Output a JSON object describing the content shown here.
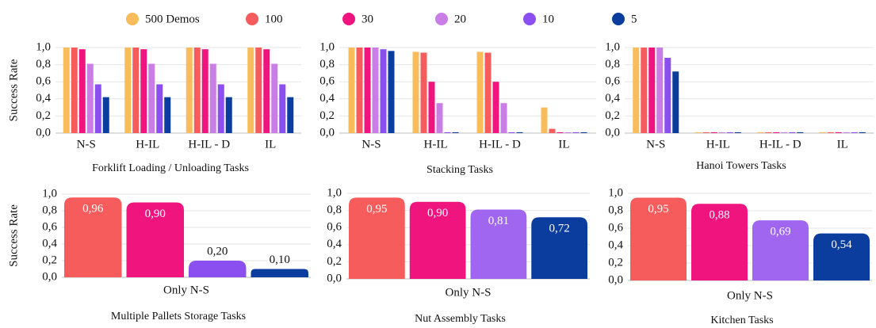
{
  "chart_data": [
    {
      "type": "bar",
      "title": "Forklift Loading / Unloading Tasks",
      "ylabel": "Success Rate",
      "categories": [
        "N-S",
        "H-IL",
        "H-IL - D",
        "IL"
      ],
      "series": [
        {
          "name": "500 Demos",
          "color": "#f9bc5b",
          "values": [
            1.0,
            1.0,
            1.0,
            1.0
          ]
        },
        {
          "name": "100",
          "color": "#f75c5c",
          "values": [
            1.0,
            1.0,
            1.0,
            1.0
          ]
        },
        {
          "name": "30",
          "color": "#f0147f",
          "values": [
            0.98,
            0.98,
            0.98,
            0.98
          ]
        },
        {
          "name": "20",
          "color": "#c97de6",
          "values": [
            0.81,
            0.81,
            0.81,
            0.81
          ]
        },
        {
          "name": "10",
          "color": "#8b4ff0",
          "values": [
            0.57,
            0.57,
            0.57,
            0.57
          ]
        },
        {
          "name": "5",
          "color": "#0b3d9e",
          "values": [
            0.42,
            0.42,
            0.42,
            0.42
          ]
        }
      ],
      "ylim": [
        0,
        1
      ],
      "yticks": [
        {
          "value": 0,
          "label": "0,0"
        },
        {
          "value": 0.2,
          "label": "0,2"
        },
        {
          "value": 0.4,
          "label": "0,4"
        },
        {
          "value": 0.6,
          "label": "0,6"
        },
        {
          "value": 0.8,
          "label": "0,8"
        },
        {
          "value": 1,
          "label": "1,0"
        }
      ],
      "grid": true
    },
    {
      "type": "bar",
      "title": "Stacking Tasks",
      "categories": [
        "N-S",
        "H-IL",
        "H-IL - D",
        "IL"
      ],
      "series": [
        {
          "name": "500 Demos",
          "color": "#f9bc5b",
          "values": [
            1.0,
            0.95,
            0.95,
            0.3
          ]
        },
        {
          "name": "100",
          "color": "#f75c5c",
          "values": [
            1.0,
            0.94,
            0.94,
            0.05
          ]
        },
        {
          "name": "30",
          "color": "#f0147f",
          "values": [
            1.0,
            0.6,
            0.6,
            0.01
          ]
        },
        {
          "name": "20",
          "color": "#c97de6",
          "values": [
            1.0,
            0.35,
            0.35,
            0.01
          ]
        },
        {
          "name": "10",
          "color": "#8b4ff0",
          "values": [
            0.98,
            0.01,
            0.01,
            0.01
          ]
        },
        {
          "name": "5",
          "color": "#0b3d9e",
          "values": [
            0.96,
            0.01,
            0.01,
            0.01
          ]
        }
      ],
      "ylim": [
        0,
        1
      ],
      "yticks": [
        {
          "value": 0,
          "label": "0,0"
        },
        {
          "value": 0.2,
          "label": "0,2"
        },
        {
          "value": 0.4,
          "label": "0,4"
        },
        {
          "value": 0.6,
          "label": "0,6"
        },
        {
          "value": 0.8,
          "label": "0,8"
        },
        {
          "value": 1,
          "label": "1,0"
        }
      ],
      "grid": true
    },
    {
      "type": "bar",
      "title": "Hanoi Towers Tasks",
      "categories": [
        "N-S",
        "H-IL",
        "H-IL - D",
        "IL"
      ],
      "series": [
        {
          "name": "500 Demos",
          "color": "#f9bc5b",
          "values": [
            1.0,
            0.01,
            0.01,
            0.01
          ]
        },
        {
          "name": "100",
          "color": "#f75c5c",
          "values": [
            1.0,
            0.01,
            0.01,
            0.01
          ]
        },
        {
          "name": "30",
          "color": "#f0147f",
          "values": [
            1.0,
            0.01,
            0.01,
            0.01
          ]
        },
        {
          "name": "20",
          "color": "#c97de6",
          "values": [
            1.0,
            0.01,
            0.01,
            0.01
          ]
        },
        {
          "name": "10",
          "color": "#8b4ff0",
          "values": [
            0.88,
            0.01,
            0.01,
            0.01
          ]
        },
        {
          "name": "5",
          "color": "#0b3d9e",
          "values": [
            0.72,
            0.01,
            0.01,
            0.01
          ]
        }
      ],
      "ylim": [
        0,
        1
      ],
      "yticks": [
        {
          "value": 0,
          "label": "0,0"
        },
        {
          "value": 0.2,
          "label": "0,2"
        },
        {
          "value": 0.4,
          "label": "0,4"
        },
        {
          "value": 0.6,
          "label": "0,6"
        },
        {
          "value": 0.8,
          "label": "0,8"
        },
        {
          "value": 1,
          "label": "1,0"
        }
      ],
      "grid": true
    },
    {
      "type": "rounded-bar",
      "title": "Multiple Pallets Storage Tasks",
      "ylabel": "Success Rate",
      "categories": [
        "Only N-S"
      ],
      "series": [
        {
          "color": "#f75c5c",
          "values": [
            0.96
          ],
          "value_labels": [
            "0,96"
          ]
        },
        {
          "color": "#f0147f",
          "values": [
            0.9
          ],
          "value_labels": [
            "0,90"
          ]
        },
        {
          "color": "#8b4ff0",
          "values": [
            0.2
          ],
          "value_labels": [
            "0,20"
          ]
        },
        {
          "color": "#0b3d9e",
          "values": [
            0.1
          ],
          "value_labels": [
            "0,10"
          ]
        }
      ],
      "ylim": [
        0,
        1
      ],
      "yticks": [
        {
          "value": 0,
          "label": "0,0"
        },
        {
          "value": 0.2,
          "label": "0,2"
        },
        {
          "value": 0.4,
          "label": "0,4"
        },
        {
          "value": 0.6,
          "label": "0,6"
        },
        {
          "value": 0.8,
          "label": "0,8"
        },
        {
          "value": 1,
          "label": "1,0"
        }
      ],
      "grid": true
    },
    {
      "type": "rounded-bar",
      "title": "Nut Assembly Tasks",
      "categories": [
        "Only N-S"
      ],
      "series": [
        {
          "color": "#f75c5c",
          "values": [
            0.95
          ],
          "value_labels": [
            "0,95"
          ]
        },
        {
          "color": "#f0147f",
          "values": [
            0.9
          ],
          "value_labels": [
            "0,90"
          ]
        },
        {
          "color": "#a066f0",
          "values": [
            0.81
          ],
          "value_labels": [
            "0,81"
          ]
        },
        {
          "color": "#0b3d9e",
          "values": [
            0.72
          ],
          "value_labels": [
            "0,72"
          ]
        }
      ],
      "ylim": [
        0,
        1
      ],
      "yticks": [
        {
          "value": 0,
          "label": "0,0"
        },
        {
          "value": 0.2,
          "label": "0,2"
        },
        {
          "value": 0.4,
          "label": "0,4"
        },
        {
          "value": 0.6,
          "label": "0,6"
        },
        {
          "value": 0.8,
          "label": "0,8"
        },
        {
          "value": 1,
          "label": "1,0"
        }
      ],
      "grid": true
    },
    {
      "type": "rounded-bar",
      "title": "Kitchen Tasks",
      "categories": [
        "Only N-S"
      ],
      "series": [
        {
          "color": "#f75c5c",
          "values": [
            0.95
          ],
          "value_labels": [
            "0,95"
          ]
        },
        {
          "color": "#f0147f",
          "values": [
            0.88
          ],
          "value_labels": [
            "0,88"
          ]
        },
        {
          "color": "#a066f0",
          "values": [
            0.69
          ],
          "value_labels": [
            "0,69"
          ]
        },
        {
          "color": "#0b3d9e",
          "values": [
            0.54
          ],
          "value_labels": [
            "0,54"
          ]
        }
      ],
      "ylim": [
        0,
        1
      ],
      "yticks": [
        {
          "value": 0,
          "label": "0,0"
        },
        {
          "value": 0.2,
          "label": "0,2"
        },
        {
          "value": 0.4,
          "label": "0,4"
        },
        {
          "value": 0.6,
          "label": "0,6"
        },
        {
          "value": 0.8,
          "label": "0,8"
        },
        {
          "value": 1,
          "label": "1,0"
        }
      ],
      "grid": true
    }
  ]
}
